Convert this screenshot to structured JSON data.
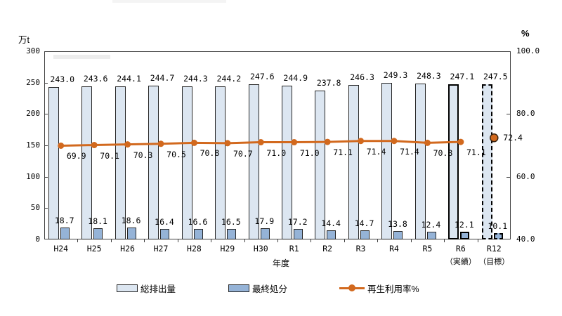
{
  "page": {
    "background": "#ffffff"
  },
  "chart_data": {
    "type": "combo-bar-line",
    "categories": [
      "H24",
      "H25",
      "H26",
      "H27",
      "H28",
      "H29",
      "H30",
      "R1",
      "R2",
      "R3",
      "R4",
      "R5",
      "R6",
      "R12"
    ],
    "category_sublabels": {
      "R6": "（実績）",
      "R12": "（目標）"
    },
    "series": [
      {
        "name": "総排出量",
        "type": "bar",
        "axis": "left",
        "values": [
          243.0,
          243.6,
          244.1,
          244.7,
          244.3,
          244.2,
          247.6,
          244.9,
          237.8,
          246.3,
          249.3,
          248.3,
          247.1,
          247.5
        ],
        "fill": "#dce6f1"
      },
      {
        "name": "最終処分",
        "type": "bar",
        "axis": "left",
        "values": [
          18.7,
          18.1,
          18.6,
          16.4,
          16.6,
          16.5,
          17.9,
          17.2,
          14.4,
          14.7,
          13.8,
          12.4,
          12.1,
          10.1
        ],
        "fill": "#95b3d7"
      },
      {
        "name": "再生利用率%",
        "type": "line",
        "axis": "right",
        "values": [
          69.9,
          70.1,
          70.3,
          70.5,
          70.8,
          70.7,
          71.0,
          71.0,
          71.1,
          71.4,
          71.4,
          70.8,
          71.1,
          72.4
        ],
        "color": "#d2691e"
      }
    ],
    "left_axis": {
      "title": "万t",
      "min": 0,
      "max": 300,
      "step": 50,
      "tick_labels": [
        "300",
        "250",
        "200",
        "150",
        "100",
        "50",
        "0"
      ]
    },
    "right_axis": {
      "title": "%",
      "min": 40,
      "max": 100,
      "step": 20,
      "tick_labels": [
        "100.0",
        "80.0",
        "60.0",
        "40.0"
      ]
    },
    "x_axis": {
      "title": "年度"
    },
    "special": {
      "bold_border_category": "R6",
      "dashed_border_category": "R12",
      "standalone_point_category": "R12",
      "grid": "off",
      "legend_position": "bottom"
    }
  },
  "legend": {
    "items": [
      {
        "label": "総排出量",
        "swatch": "bar-light",
        "fill": "#dce6f1"
      },
      {
        "label": "最終処分",
        "swatch": "bar-blue",
        "fill": "#95b3d7"
      },
      {
        "label": "再生利用率%",
        "swatch": "line-marker",
        "color": "#d2691e"
      }
    ]
  },
  "colors": {
    "bar_total_fill": "#dce6f1",
    "bar_disposal_fill": "#95b3d7",
    "bar_border": "#262626",
    "line_orange": "#d2691e",
    "axis": "#3f3f3f",
    "text": "#000000"
  }
}
